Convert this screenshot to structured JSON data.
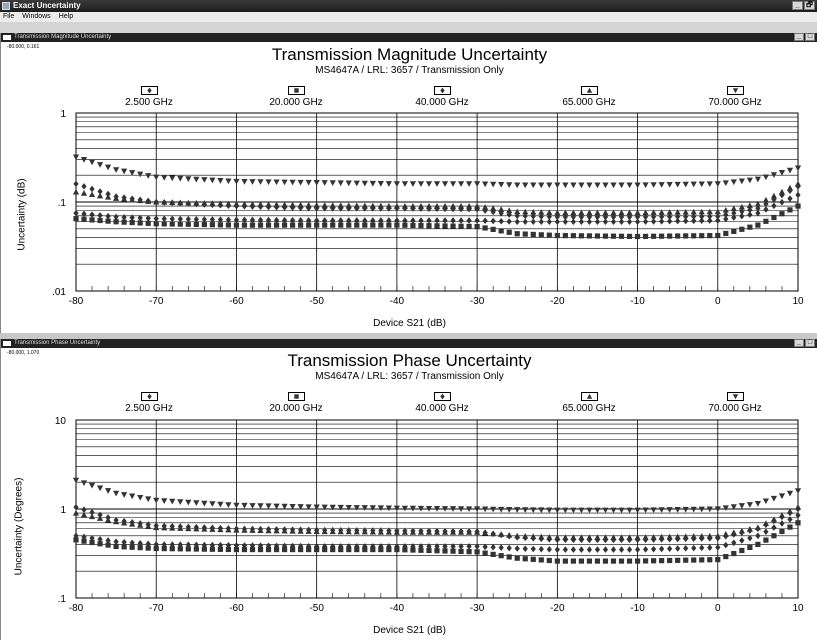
{
  "app": {
    "title": "Exact Uncertainty"
  },
  "menu": [
    "File",
    "Windows",
    "Help"
  ],
  "window_buttons": [
    "_",
    "🗗",
    "×"
  ],
  "panel_buttons": [
    "_",
    "□",
    "×"
  ],
  "panels": [
    {
      "title": "Transmission Magnitude Uncertainty",
      "coord": "-80.000, 0.161",
      "chart_title": "Transmission Magnitude Uncertainty",
      "subtitle": "MS4647A / LRL: 3657 / Transmission Only",
      "ylabel": "Uncertainty (dB)",
      "xlabel": "Device S21 (dB)"
    },
    {
      "title": "Transmission Phase Uncertainty",
      "coord": "-80.000, 1.070",
      "chart_title": "Transmission Phase Uncertainty",
      "subtitle": "MS4647A / LRL: 3657 / Transmission Only",
      "ylabel": "Uncertainty (Degrees)",
      "xlabel": "Device S21 (dB)"
    }
  ],
  "colors": {
    "marker": "#333333",
    "grid": "#000000",
    "background": "#ffffff"
  },
  "chart_data": [
    {
      "type": "scatter",
      "title": "Transmission Magnitude Uncertainty",
      "subtitle": "MS4647A / LRL: 3657 / Transmission Only",
      "xlabel": "Device S21 (dB)",
      "ylabel": "Uncertainty (dB)",
      "xlim": [
        -80,
        10
      ],
      "ylim": [
        0.01,
        1
      ],
      "yscale": "log",
      "grid": true,
      "legend_position": "top",
      "x_ticks": [
        "-80",
        "-70",
        "-60",
        "-50",
        "-40",
        "-30",
        "-20",
        "-10",
        "0",
        "10"
      ],
      "y_ticks": [
        "1",
        ".1",
        ".01"
      ],
      "series": [
        {
          "name": "2.500 GHz",
          "marker": "diamond",
          "x": [
            -80,
            -75,
            -70,
            -60,
            -50,
            -40,
            -30,
            -25,
            -20,
            -10,
            0,
            5,
            10
          ],
          "y": [
            0.075,
            0.068,
            0.065,
            0.063,
            0.062,
            0.062,
            0.062,
            0.06,
            0.06,
            0.06,
            0.062,
            0.075,
            0.12
          ]
        },
        {
          "name": "20.000 GHz",
          "marker": "square",
          "x": [
            -80,
            -75,
            -70,
            -60,
            -50,
            -40,
            -30,
            -25,
            -20,
            -10,
            0,
            5,
            10
          ],
          "y": [
            0.065,
            0.06,
            0.057,
            0.055,
            0.055,
            0.055,
            0.053,
            0.044,
            0.042,
            0.041,
            0.042,
            0.055,
            0.09
          ]
        },
        {
          "name": "40.000 GHz",
          "marker": "diamond",
          "x": [
            -80,
            -75,
            -70,
            -60,
            -50,
            -40,
            -30,
            -25,
            -20,
            -10,
            0,
            5,
            10
          ],
          "y": [
            0.16,
            0.115,
            0.1,
            0.09,
            0.085,
            0.085,
            0.083,
            0.07,
            0.068,
            0.068,
            0.069,
            0.085,
            0.15
          ]
        },
        {
          "name": "65.000 GHz",
          "marker": "triangle-up",
          "x": [
            -80,
            -75,
            -70,
            -60,
            -50,
            -40,
            -30,
            -25,
            -20,
            -10,
            0,
            5,
            10
          ],
          "y": [
            0.13,
            0.11,
            0.1,
            0.095,
            0.092,
            0.09,
            0.09,
            0.078,
            0.076,
            0.076,
            0.078,
            0.095,
            0.16
          ]
        },
        {
          "name": "70.000 GHz",
          "marker": "triangle-down",
          "x": [
            -80,
            -75,
            -70,
            -60,
            -50,
            -40,
            -30,
            -25,
            -20,
            -10,
            0,
            5,
            10
          ],
          "y": [
            0.32,
            0.23,
            0.19,
            0.17,
            0.165,
            0.16,
            0.16,
            0.155,
            0.155,
            0.155,
            0.16,
            0.18,
            0.24
          ]
        }
      ]
    },
    {
      "type": "scatter",
      "title": "Transmission Phase Uncertainty",
      "subtitle": "MS4647A / LRL: 3657 / Transmission Only",
      "xlabel": "Device S21 (dB)",
      "ylabel": "Uncertainty (Degrees)",
      "xlim": [
        -80,
        10
      ],
      "ylim": [
        0.1,
        10
      ],
      "yscale": "log",
      "grid": true,
      "legend_position": "top",
      "x_ticks": [
        "-80",
        "-70",
        "-60",
        "-50",
        "-40",
        "-30",
        "-20",
        "-10",
        "0",
        "10"
      ],
      "y_ticks": [
        "10",
        "1",
        ".1"
      ],
      "series": [
        {
          "name": "2.500 GHz",
          "marker": "diamond",
          "x": [
            -80,
            -75,
            -70,
            -60,
            -50,
            -40,
            -30,
            -25,
            -20,
            -10,
            0,
            5,
            10
          ],
          "y": [
            0.5,
            0.43,
            0.4,
            0.39,
            0.38,
            0.38,
            0.38,
            0.36,
            0.35,
            0.35,
            0.37,
            0.5,
            0.85
          ]
        },
        {
          "name": "20.000 GHz",
          "marker": "square",
          "x": [
            -80,
            -75,
            -70,
            -60,
            -50,
            -40,
            -30,
            -25,
            -20,
            -10,
            0,
            5,
            10
          ],
          "y": [
            0.45,
            0.38,
            0.36,
            0.35,
            0.35,
            0.35,
            0.33,
            0.28,
            0.26,
            0.26,
            0.27,
            0.4,
            0.7
          ]
        },
        {
          "name": "40.000 GHz",
          "marker": "diamond",
          "x": [
            -80,
            -75,
            -70,
            -60,
            -50,
            -40,
            -30,
            -25,
            -20,
            -10,
            0,
            5,
            10
          ],
          "y": [
            1.05,
            0.75,
            0.65,
            0.6,
            0.58,
            0.57,
            0.56,
            0.48,
            0.45,
            0.45,
            0.47,
            0.6,
            1.0
          ]
        },
        {
          "name": "65.000 GHz",
          "marker": "triangle-up",
          "x": [
            -80,
            -75,
            -70,
            -60,
            -50,
            -40,
            -30,
            -25,
            -20,
            -10,
            0,
            5,
            10
          ],
          "y": [
            0.9,
            0.72,
            0.62,
            0.58,
            0.56,
            0.55,
            0.55,
            0.5,
            0.48,
            0.48,
            0.5,
            0.62,
            1.05
          ]
        },
        {
          "name": "70.000 GHz",
          "marker": "triangle-down",
          "x": [
            -80,
            -75,
            -70,
            -60,
            -50,
            -40,
            -30,
            -25,
            -20,
            -10,
            0,
            5,
            10
          ],
          "y": [
            2.1,
            1.5,
            1.25,
            1.1,
            1.05,
            1.02,
            1.0,
            0.98,
            0.97,
            0.97,
            1.0,
            1.15,
            1.6
          ]
        }
      ]
    }
  ]
}
